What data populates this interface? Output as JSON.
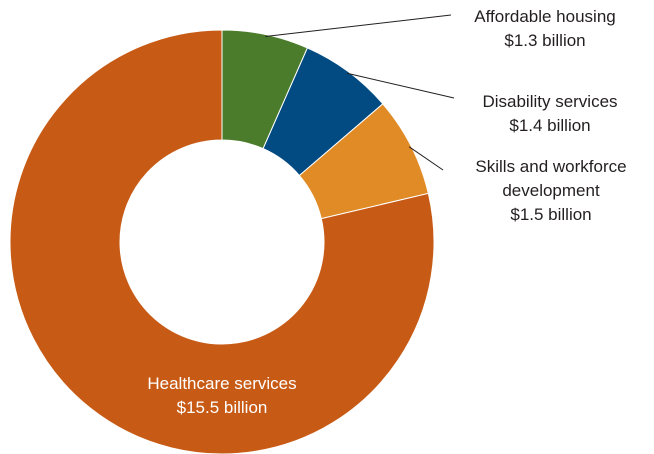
{
  "chart_data": {
    "type": "pie",
    "variant": "donut",
    "title": "",
    "unit": "$ billion",
    "slices": [
      {
        "name": "Affordable housing",
        "value": 1.3,
        "value_label": "$1.3 billion",
        "color": "#4a7c2c"
      },
      {
        "name": "Disability services",
        "value": 1.4,
        "value_label": "$1.4 billion",
        "color": "#024b82"
      },
      {
        "name": "Skills and workforce development",
        "name_lines": [
          "Skills and workforce",
          "development"
        ],
        "value": 1.5,
        "value_label": "$1.5 billion",
        "color": "#e08b26"
      },
      {
        "name": "Healthcare services",
        "value": 15.5,
        "value_label": "$15.5 billion",
        "color": "#c75b16"
      }
    ],
    "start_angle_deg": 0,
    "direction": "clockwise",
    "legend": "none"
  }
}
